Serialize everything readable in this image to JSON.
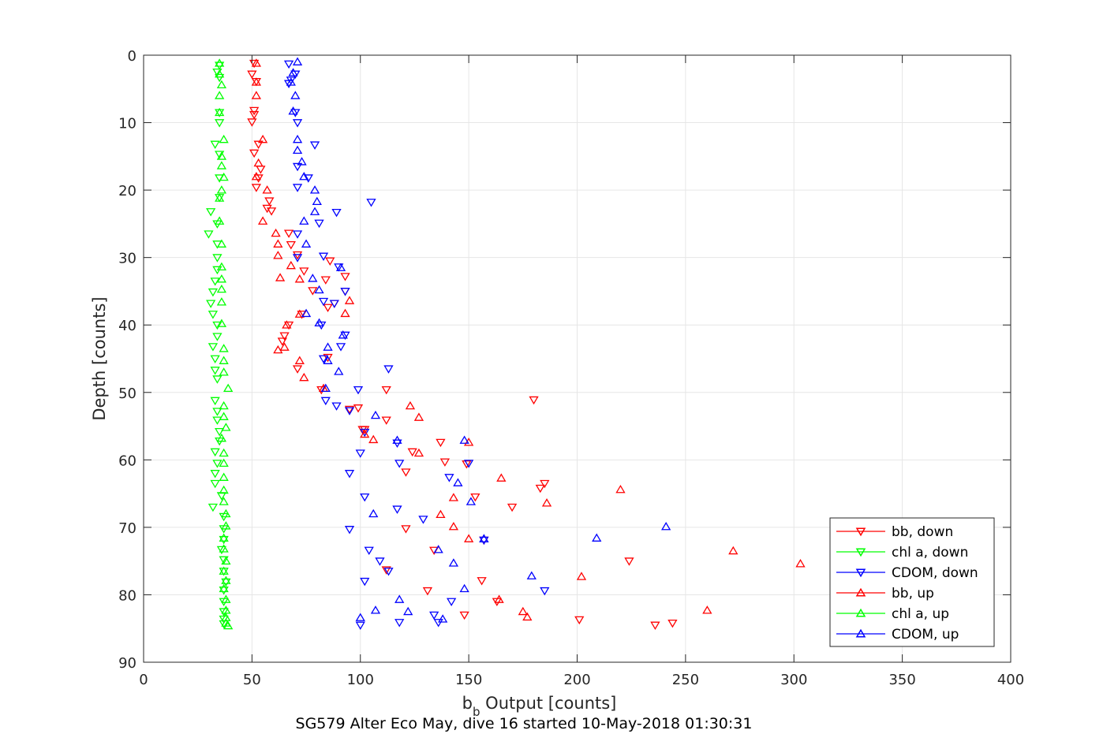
{
  "chart_data": {
    "type": "scatter",
    "title": "SG579 Alter Eco May, dive 16 started 10-May-2018 01:30:31",
    "xlabel_main": "b",
    "xlabel_sub": "b",
    "xlabel_rest": " Output [counts]",
    "ylabel": "Depth [counts]",
    "xlim": [
      0,
      400
    ],
    "ylim": [
      0,
      90
    ],
    "y_reversed": true,
    "grid": true,
    "legend_position": "bottom-right",
    "xticks": [
      "0",
      "50",
      "100",
      "150",
      "200",
      "250",
      "300",
      "350",
      "400"
    ],
    "yticks": [
      "0",
      "10",
      "20",
      "30",
      "40",
      "50",
      "60",
      "70",
      "80",
      "90"
    ],
    "series": [
      {
        "name": "bb, down",
        "color": "#ff0000",
        "marker": "triangle-down",
        "points": [
          [
            51,
            1.2
          ],
          [
            50,
            2.8
          ],
          [
            52,
            3.9
          ],
          [
            51,
            8.2
          ],
          [
            51,
            8.8
          ],
          [
            50,
            9.9
          ],
          [
            53,
            13.2
          ],
          [
            51,
            14.5
          ],
          [
            54,
            16.9
          ],
          [
            53,
            18.2
          ],
          [
            52,
            19.6
          ],
          [
            58,
            21.6
          ],
          [
            57,
            22.7
          ],
          [
            59,
            23.1
          ],
          [
            67,
            26.4
          ],
          [
            68,
            28.1
          ],
          [
            71,
            29.6
          ],
          [
            74,
            32
          ],
          [
            78,
            34.9
          ],
          [
            84,
            33.3
          ],
          [
            93,
            35
          ],
          [
            85,
            37.4
          ],
          [
            67,
            40
          ],
          [
            73,
            38.4
          ],
          [
            65,
            41.6
          ],
          [
            64,
            42.4
          ],
          [
            85,
            44.8
          ],
          [
            71,
            46.5
          ],
          [
            82,
            49.6
          ],
          [
            95,
            52.5
          ],
          [
            101,
            55.5
          ],
          [
            112,
            49.6
          ],
          [
            180,
            51.1
          ],
          [
            112,
            54.1
          ],
          [
            137,
            57.4
          ],
          [
            124,
            58.8
          ],
          [
            139,
            60.3
          ],
          [
            121,
            61.8
          ],
          [
            149,
            60.6
          ],
          [
            185,
            63.5
          ],
          [
            153,
            65.5
          ],
          [
            183,
            64.2
          ],
          [
            170,
            67
          ],
          [
            121,
            70.2
          ],
          [
            157,
            71.9
          ],
          [
            134,
            73.4
          ],
          [
            112,
            76.3
          ],
          [
            224,
            75
          ],
          [
            156,
            77.9
          ],
          [
            131,
            79.4
          ],
          [
            163,
            81
          ],
          [
            148,
            83
          ],
          [
            201,
            83.7
          ],
          [
            236,
            84.5
          ],
          [
            244,
            84.2
          ],
          [
            102,
            55.5
          ],
          [
            99,
            52.3
          ],
          [
            86,
            30.5
          ],
          [
            93,
            32.8
          ],
          [
            88,
            36.8
          ]
        ]
      },
      {
        "name": "chl a, down",
        "color": "#00ff00",
        "marker": "triangle-down",
        "points": [
          [
            35,
            1.5
          ],
          [
            34,
            2.5
          ],
          [
            35,
            3.3
          ],
          [
            35,
            8.5
          ],
          [
            35,
            10
          ],
          [
            33,
            13.2
          ],
          [
            35,
            14.7
          ],
          [
            35,
            18.2
          ],
          [
            35,
            21.1
          ],
          [
            31,
            23.2
          ],
          [
            34,
            25
          ],
          [
            30,
            26.5
          ],
          [
            34,
            28
          ],
          [
            34,
            30
          ],
          [
            34,
            31.8
          ],
          [
            33,
            33.5
          ],
          [
            32,
            35.1
          ],
          [
            31,
            36.8
          ],
          [
            32,
            38.4
          ],
          [
            34,
            40
          ],
          [
            34,
            41.7
          ],
          [
            32,
            43.2
          ],
          [
            33,
            45
          ],
          [
            33,
            46.7
          ],
          [
            34,
            48
          ],
          [
            33,
            51.2
          ],
          [
            34,
            52.8
          ],
          [
            34,
            54.1
          ],
          [
            35,
            55.8
          ],
          [
            35,
            57.2
          ],
          [
            33,
            58.8
          ],
          [
            34,
            60.5
          ],
          [
            33,
            62
          ],
          [
            33,
            63.5
          ],
          [
            36,
            65.3
          ],
          [
            32,
            67
          ],
          [
            37,
            68.4
          ],
          [
            37,
            70.2
          ],
          [
            37,
            71.8
          ],
          [
            36,
            73.3
          ],
          [
            37,
            74.8
          ],
          [
            37,
            76.5
          ],
          [
            38,
            78.1
          ],
          [
            37,
            79.3
          ],
          [
            37,
            81
          ],
          [
            37,
            82.5
          ],
          [
            37,
            83.6
          ],
          [
            37,
            84.3
          ]
        ]
      },
      {
        "name": "CDOM, down",
        "color": "#0000ff",
        "marker": "triangle-down",
        "points": [
          [
            67,
            1.3
          ],
          [
            70,
            2.8
          ],
          [
            68,
            3.7
          ],
          [
            67,
            4.2
          ],
          [
            70,
            8.5
          ],
          [
            71,
            10
          ],
          [
            79,
            13.3
          ],
          [
            71,
            16.5
          ],
          [
            76,
            18.2
          ],
          [
            71,
            19.6
          ],
          [
            105,
            21.8
          ],
          [
            89,
            23.3
          ],
          [
            81,
            24.9
          ],
          [
            71,
            26.5
          ],
          [
            83,
            29.8
          ],
          [
            90,
            31.4
          ],
          [
            93,
            35
          ],
          [
            88,
            36.8
          ],
          [
            83,
            36.5
          ],
          [
            82,
            40
          ],
          [
            93,
            41.5
          ],
          [
            91,
            43.2
          ],
          [
            83,
            45
          ],
          [
            113,
            46.5
          ],
          [
            99,
            49.6
          ],
          [
            84,
            51.2
          ],
          [
            89,
            52
          ],
          [
            95,
            52.7
          ],
          [
            102,
            55.9
          ],
          [
            100,
            59
          ],
          [
            117,
            57.5
          ],
          [
            118,
            60.5
          ],
          [
            95,
            62
          ],
          [
            150,
            60.5
          ],
          [
            141,
            62.6
          ],
          [
            102,
            65.5
          ],
          [
            117,
            67.3
          ],
          [
            129,
            68.8
          ],
          [
            95,
            70.3
          ],
          [
            157,
            71.9
          ],
          [
            104,
            73.4
          ],
          [
            109,
            75
          ],
          [
            113,
            76.5
          ],
          [
            102,
            78
          ],
          [
            185,
            79.4
          ],
          [
            142,
            81
          ],
          [
            118,
            84.1
          ],
          [
            100,
            84.5
          ],
          [
            134,
            83
          ],
          [
            136,
            84.1
          ],
          [
            71,
            30
          ]
        ]
      },
      {
        "name": "bb, up",
        "color": "#ff0000",
        "marker": "triangle-up",
        "points": [
          [
            52,
            1.2
          ],
          [
            52,
            4
          ],
          [
            52,
            6
          ],
          [
            55,
            12.5
          ],
          [
            53,
            16
          ],
          [
            52,
            18
          ],
          [
            57,
            20
          ],
          [
            55,
            24.6
          ],
          [
            61,
            26.4
          ],
          [
            62,
            28
          ],
          [
            62,
            29.7
          ],
          [
            68,
            31.2
          ],
          [
            63,
            33
          ],
          [
            72,
            33.2
          ],
          [
            95,
            36.4
          ],
          [
            93,
            38.3
          ],
          [
            72,
            38.4
          ],
          [
            66,
            40
          ],
          [
            62,
            43.7
          ],
          [
            65,
            43.3
          ],
          [
            72,
            45.3
          ],
          [
            74,
            47.8
          ],
          [
            83,
            49.4
          ],
          [
            123,
            52
          ],
          [
            127,
            53.7
          ],
          [
            106,
            57
          ],
          [
            127,
            59
          ],
          [
            165,
            62.7
          ],
          [
            186,
            66.4
          ],
          [
            220,
            64.4
          ],
          [
            137,
            68.1
          ],
          [
            143,
            69.9
          ],
          [
            150,
            71.7
          ],
          [
            202,
            77.3
          ],
          [
            272,
            73.5
          ],
          [
            303,
            75.4
          ],
          [
            260,
            82.3
          ],
          [
            175,
            82.5
          ],
          [
            177,
            83.3
          ],
          [
            164,
            80.7
          ],
          [
            150,
            57.4
          ],
          [
            143,
            65.6
          ],
          [
            102,
            56.2
          ]
        ]
      },
      {
        "name": "chl a, up",
        "color": "#00ff00",
        "marker": "triangle-up",
        "points": [
          [
            35,
            1.2
          ],
          [
            35,
            2.8
          ],
          [
            36,
            4.4
          ],
          [
            35,
            6
          ],
          [
            35,
            8.5
          ],
          [
            37,
            12.5
          ],
          [
            36,
            15
          ],
          [
            36,
            16.4
          ],
          [
            37,
            18.1
          ],
          [
            36,
            20
          ],
          [
            35,
            21.2
          ],
          [
            35,
            24.6
          ],
          [
            36,
            28
          ],
          [
            36,
            31.4
          ],
          [
            36,
            33.2
          ],
          [
            36,
            34.7
          ],
          [
            36,
            36.6
          ],
          [
            36,
            39.8
          ],
          [
            37,
            43.5
          ],
          [
            37,
            45.3
          ],
          [
            37,
            47
          ],
          [
            39,
            49.4
          ],
          [
            37,
            52
          ],
          [
            37,
            53.6
          ],
          [
            38,
            55.2
          ],
          [
            36,
            56.8
          ],
          [
            37,
            59
          ],
          [
            37,
            60.5
          ],
          [
            37,
            62.6
          ],
          [
            37,
            64.5
          ],
          [
            37,
            66.2
          ],
          [
            38,
            68
          ],
          [
            38,
            69.8
          ],
          [
            37,
            71.6
          ],
          [
            37,
            73.2
          ],
          [
            38,
            75
          ],
          [
            37,
            76.5
          ],
          [
            38,
            77.9
          ],
          [
            37,
            79.1
          ],
          [
            38,
            80.7
          ],
          [
            38,
            82.3
          ],
          [
            38,
            83.4
          ],
          [
            38,
            84.2
          ],
          [
            39,
            84.6
          ]
        ]
      },
      {
        "name": "CDOM, up",
        "color": "#0000ff",
        "marker": "triangle-up",
        "points": [
          [
            71,
            1
          ],
          [
            69,
            2.6
          ],
          [
            68,
            4
          ],
          [
            70,
            6
          ],
          [
            69,
            8.3
          ],
          [
            71,
            12.5
          ],
          [
            71,
            14.1
          ],
          [
            73,
            15.8
          ],
          [
            74,
            18
          ],
          [
            79,
            20
          ],
          [
            80,
            21.7
          ],
          [
            79,
            23.2
          ],
          [
            74,
            24.6
          ],
          [
            75,
            28
          ],
          [
            78,
            33.1
          ],
          [
            81,
            34.8
          ],
          [
            75,
            38.3
          ],
          [
            81,
            39.7
          ],
          [
            92,
            41.5
          ],
          [
            85,
            43.3
          ],
          [
            85,
            45.3
          ],
          [
            90,
            46.9
          ],
          [
            84,
            49.4
          ],
          [
            107,
            53.4
          ],
          [
            117,
            57.1
          ],
          [
            148,
            57.1
          ],
          [
            145,
            63.4
          ],
          [
            151,
            66.2
          ],
          [
            106,
            68
          ],
          [
            157,
            71.7
          ],
          [
            209,
            71.6
          ],
          [
            241,
            69.9
          ],
          [
            179,
            77.2
          ],
          [
            148,
            79.1
          ],
          [
            118,
            80.7
          ],
          [
            107,
            82.3
          ],
          [
            122,
            82.5
          ],
          [
            138,
            83.6
          ],
          [
            100,
            83.4
          ],
          [
            136,
            73.3
          ],
          [
            143,
            75.3
          ],
          [
            157,
            71.7
          ],
          [
            91,
            31.5
          ]
        ]
      }
    ]
  }
}
